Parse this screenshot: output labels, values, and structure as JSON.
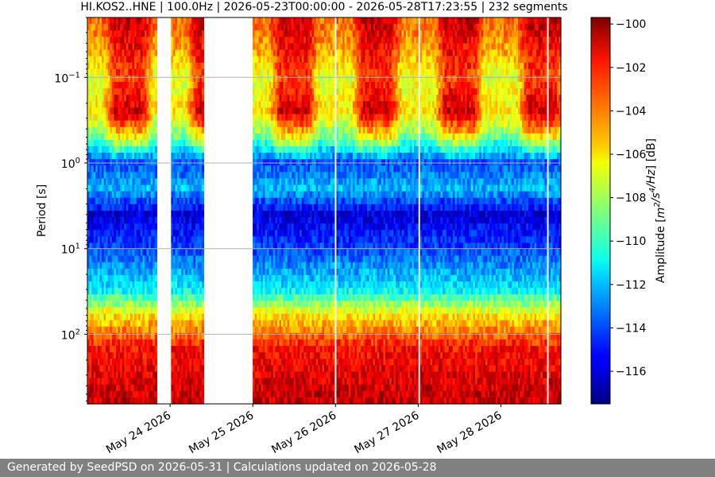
{
  "chart_data": {
    "type": "heatmap",
    "title": "HI.KOS2..HNE | 100.0Hz | 2026-05-23T00:00:00 - 2026-05-28T17:23:55 | 232 segments",
    "ylabel": "Period [s]",
    "xlabel": "",
    "y_scale": "log",
    "y_inverted": true,
    "ylim": [
      0.02,
      650
    ],
    "yticks": [
      {
        "value": 0.1,
        "label": "10",
        "exp": "−1"
      },
      {
        "value": 1,
        "label": "10",
        "exp": "0"
      },
      {
        "value": 10,
        "label": "10",
        "exp": "1"
      },
      {
        "value": 100,
        "label": "10",
        "exp": "2"
      }
    ],
    "x_range": [
      "2026-05-23T00:00:00",
      "2026-05-28T17:23:55"
    ],
    "xticks": [
      {
        "date": "2026-05-24",
        "label": "May 24 2026"
      },
      {
        "date": "2026-05-25",
        "label": "May 25 2026"
      },
      {
        "date": "2026-05-26",
        "label": "May 26 2026"
      },
      {
        "date": "2026-05-27",
        "label": "May 27 2026"
      },
      {
        "date": "2026-05-28",
        "label": "May 28 2026"
      }
    ],
    "grid": "horizontal at y ticks",
    "data_gaps": [
      [
        "2026-05-23T20:00:00",
        "2026-05-24T00:00:00"
      ],
      [
        "2026-05-24T10:00:00",
        "2026-05-25T00:00:00"
      ],
      [
        "2026-05-25T23:40:00",
        "2026-05-26T00:15:00"
      ],
      [
        "2026-05-27T00:00:00",
        "2026-05-27T00:20:00"
      ],
      [
        "2026-05-28T00:00:00",
        "2026-05-28T00:20:00"
      ],
      [
        "2026-05-28T13:15:00",
        "2026-05-28T13:35:00"
      ]
    ],
    "colorbar": {
      "label": "Amplitude [m²/s⁴/Hz] [dB]",
      "range": [
        -117.5,
        -99.7
      ],
      "ticks": [
        -100,
        -102,
        -104,
        -106,
        -108,
        -110,
        -112,
        -114,
        -116
      ],
      "colormap": "jet"
    },
    "amplitude_profile_db": [
      {
        "period": 0.025,
        "day": -101,
        "night": -104
      },
      {
        "period": 0.05,
        "day": -102,
        "night": -105
      },
      {
        "period": 0.1,
        "day": -103,
        "night": -107
      },
      {
        "period": 0.25,
        "day": -101,
        "night": -106
      },
      {
        "period": 0.5,
        "day": -106,
        "night": -109
      },
      {
        "period": 1,
        "day": -114,
        "night": -114
      },
      {
        "period": 2,
        "day": -112,
        "night": -112
      },
      {
        "period": 4,
        "day": -116,
        "night": -116
      },
      {
        "period": 10,
        "day": -114,
        "night": -114
      },
      {
        "period": 30,
        "day": -111,
        "night": -111
      },
      {
        "period": 60,
        "day": -106,
        "night": -106
      },
      {
        "period": 150,
        "day": -102,
        "night": -102
      },
      {
        "period": 500,
        "day": -101,
        "night": -101
      }
    ]
  },
  "footer": {
    "text": "Generated by SeedPSD on 2026-05-31 | Calculations updated on 2026-05-28"
  }
}
